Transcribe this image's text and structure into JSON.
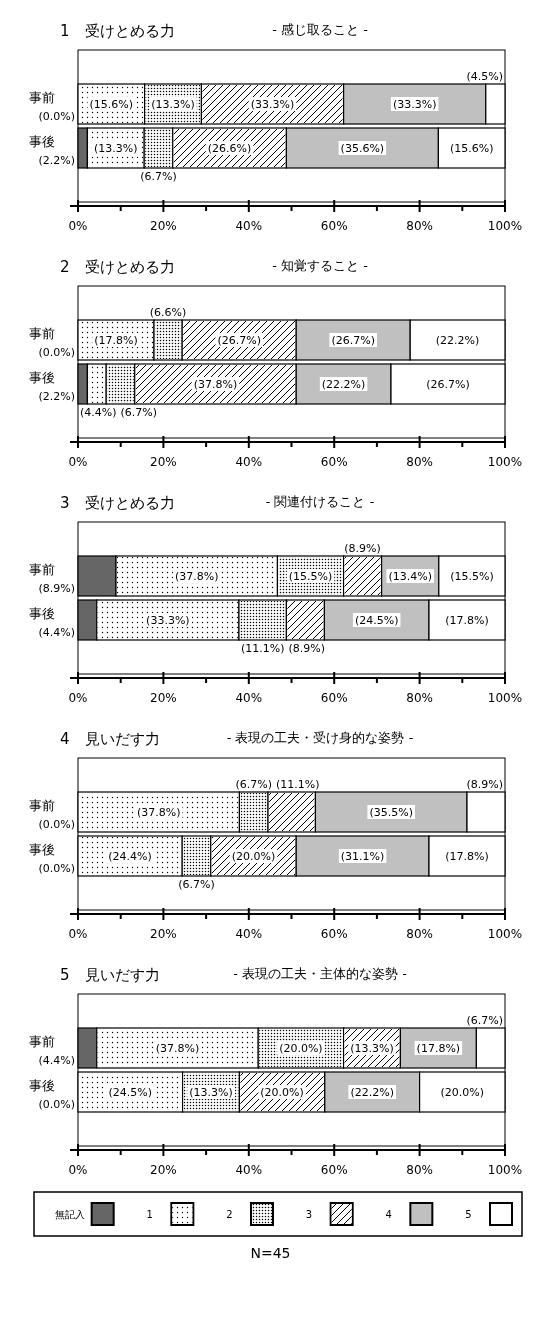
{
  "chart_data": [
    {
      "type": "bar",
      "orientation": "horizontal",
      "stacked": true,
      "title": "1　受けとめる力",
      "subtitle": "- 感じ取ること -",
      "categories": [
        "事前",
        "事後"
      ],
      "xlim": [
        0,
        100
      ],
      "xticks": [
        {
          "value": 0,
          "label": "0%"
        },
        {
          "value": 10,
          "label": null
        },
        {
          "value": 20,
          "label": "20%"
        },
        {
          "value": 30,
          "label": null
        },
        {
          "value": 40,
          "label": "40%"
        },
        {
          "value": 50,
          "label": null
        },
        {
          "value": 60,
          "label": "60%"
        },
        {
          "value": 70,
          "label": null
        },
        {
          "value": 80,
          "label": "80%"
        },
        {
          "value": 90,
          "label": null
        },
        {
          "value": 100,
          "label": "100%"
        }
      ],
      "series": [
        {
          "color": "#666666",
          "values": [
            0.0,
            2.2
          ],
          "value_labels": [
            "(0.0%)",
            "(2.2%)"
          ]
        },
        {
          "color": "#ffffff",
          "values": [
            15.6,
            13.3
          ],
          "value_labels": [
            "(15.6%)",
            "(13.3%)"
          ]
        },
        {
          "color": "#ffffff",
          "values": [
            13.3,
            6.7
          ],
          "value_labels": [
            "(13.3%)",
            "(6.7%)"
          ]
        },
        {
          "color": "#ffffff",
          "values": [
            33.3,
            26.6
          ],
          "value_labels": [
            "(33.3%)",
            "(26.6%)"
          ]
        },
        {
          "color": "#c0c0c0",
          "values": [
            33.3,
            35.6
          ],
          "value_labels": [
            "(33.3%)",
            "(35.6%)"
          ]
        },
        {
          "color": "#ffffff",
          "values": [
            4.5,
            15.6
          ],
          "value_labels": [
            "(4.5%)",
            "(15.6%)"
          ]
        }
      ]
    },
    {
      "type": "bar",
      "orientation": "horizontal",
      "stacked": true,
      "title": "2　受けとめる力",
      "subtitle": "- 知覚すること -",
      "categories": [
        "事前",
        "事後"
      ],
      "xlim": [
        0,
        100
      ],
      "xticks": [
        {
          "value": 0,
          "label": "0%"
        },
        {
          "value": 10,
          "label": null
        },
        {
          "value": 20,
          "label": "20%"
        },
        {
          "value": 30,
          "label": null
        },
        {
          "value": 40,
          "label": "40%"
        },
        {
          "value": 50,
          "label": null
        },
        {
          "value": 60,
          "label": "60%"
        },
        {
          "value": 70,
          "label": null
        },
        {
          "value": 80,
          "label": "80%"
        },
        {
          "value": 90,
          "label": null
        },
        {
          "value": 100,
          "label": "100%"
        }
      ],
      "series": [
        {
          "color": "#666666",
          "values": [
            0.0,
            2.2
          ],
          "value_labels": [
            "(0.0%)",
            "(2.2%)"
          ]
        },
        {
          "color": "#ffffff",
          "values": [
            17.8,
            4.4
          ],
          "value_labels": [
            "(17.8%)",
            "(4.4%)"
          ]
        },
        {
          "color": "#ffffff",
          "values": [
            6.6,
            6.7
          ],
          "value_labels": [
            "(6.6%)",
            "(6.7%)"
          ]
        },
        {
          "color": "#ffffff",
          "values": [
            26.7,
            37.8
          ],
          "value_labels": [
            "(26.7%)",
            "(37.8%)"
          ]
        },
        {
          "color": "#c0c0c0",
          "values": [
            26.7,
            22.2
          ],
          "value_labels": [
            "(26.7%)",
            "(22.2%)"
          ]
        },
        {
          "color": "#ffffff",
          "values": [
            22.2,
            26.7
          ],
          "value_labels": [
            "(22.2%)",
            "(26.7%)"
          ]
        }
      ]
    },
    {
      "type": "bar",
      "orientation": "horizontal",
      "stacked": true,
      "title": "3　受けとめる力",
      "subtitle": "- 関連付けること -",
      "categories": [
        "事前",
        "事後"
      ],
      "xlim": [
        0,
        100
      ],
      "xticks": [
        {
          "value": 0,
          "label": "0%"
        },
        {
          "value": 10,
          "label": null
        },
        {
          "value": 20,
          "label": "20%"
        },
        {
          "value": 30,
          "label": null
        },
        {
          "value": 40,
          "label": "40%"
        },
        {
          "value": 50,
          "label": null
        },
        {
          "value": 60,
          "label": "60%"
        },
        {
          "value": 70,
          "label": null
        },
        {
          "value": 80,
          "label": "80%"
        },
        {
          "value": 90,
          "label": null
        },
        {
          "value": 100,
          "label": "100%"
        }
      ],
      "series": [
        {
          "color": "#666666",
          "values": [
            8.9,
            4.4
          ],
          "value_labels": [
            "(8.9%)",
            "(4.4%)"
          ]
        },
        {
          "color": "#ffffff",
          "values": [
            37.8,
            33.3
          ],
          "value_labels": [
            "(37.8%)",
            "(33.3%)"
          ]
        },
        {
          "color": "#ffffff",
          "values": [
            15.5,
            11.1
          ],
          "value_labels": [
            "(15.5%)",
            "(11.1%)"
          ]
        },
        {
          "color": "#ffffff",
          "values": [
            8.9,
            8.9
          ],
          "value_labels": [
            "(8.9%)",
            "(8.9%)"
          ]
        },
        {
          "color": "#c0c0c0",
          "values": [
            13.4,
            24.5
          ],
          "value_labels": [
            "(13.4%)",
            "(24.5%)"
          ]
        },
        {
          "color": "#ffffff",
          "values": [
            15.5,
            17.8
          ],
          "value_labels": [
            "(15.5%)",
            "(17.8%)"
          ]
        }
      ]
    },
    {
      "type": "bar",
      "orientation": "horizontal",
      "stacked": true,
      "title": "4　見いだす力",
      "subtitle": "- 表現の工夫・受け身的な姿勢 -",
      "categories": [
        "事前",
        "事後"
      ],
      "xlim": [
        0,
        100
      ],
      "xticks": [
        {
          "value": 0,
          "label": "0%"
        },
        {
          "value": 10,
          "label": null
        },
        {
          "value": 20,
          "label": "20%"
        },
        {
          "value": 30,
          "label": null
        },
        {
          "value": 40,
          "label": "40%"
        },
        {
          "value": 50,
          "label": null
        },
        {
          "value": 60,
          "label": "60%"
        },
        {
          "value": 70,
          "label": null
        },
        {
          "value": 80,
          "label": "80%"
        },
        {
          "value": 90,
          "label": null
        },
        {
          "value": 100,
          "label": "100%"
        }
      ],
      "series": [
        {
          "color": "#666666",
          "values": [
            0.0,
            0.0
          ],
          "value_labels": [
            "(0.0%)",
            "(0.0%)"
          ]
        },
        {
          "color": "#ffffff",
          "values": [
            37.8,
            24.4
          ],
          "value_labels": [
            "(37.8%)",
            "(24.4%)"
          ]
        },
        {
          "color": "#ffffff",
          "values": [
            6.7,
            6.7
          ],
          "value_labels": [
            "(6.7%)",
            "(6.7%)"
          ]
        },
        {
          "color": "#ffffff",
          "values": [
            11.1,
            20.0
          ],
          "value_labels": [
            "(11.1%)",
            "(20.0%)"
          ]
        },
        {
          "color": "#c0c0c0",
          "values": [
            35.5,
            31.1
          ],
          "value_labels": [
            "(35.5%)",
            "(31.1%)"
          ]
        },
        {
          "color": "#ffffff",
          "values": [
            8.9,
            17.8
          ],
          "value_labels": [
            "(8.9%)",
            "(17.8%)"
          ]
        }
      ]
    },
    {
      "type": "bar",
      "orientation": "horizontal",
      "stacked": true,
      "title": "5　見いだす力",
      "subtitle": "- 表現の工夫・主体的な姿勢 -",
      "categories": [
        "事前",
        "事後"
      ],
      "xlim": [
        0,
        100
      ],
      "xticks": [
        {
          "value": 0,
          "label": "0%"
        },
        {
          "value": 10,
          "label": null
        },
        {
          "value": 20,
          "label": "20%"
        },
        {
          "value": 30,
          "label": null
        },
        {
          "value": 40,
          "label": "40%"
        },
        {
          "value": 50,
          "label": null
        },
        {
          "value": 60,
          "label": "60%"
        },
        {
          "value": 70,
          "label": null
        },
        {
          "value": 80,
          "label": "80%"
        },
        {
          "value": 90,
          "label": null
        },
        {
          "value": 100,
          "label": "100%"
        }
      ],
      "legend": "bottom",
      "annotations": [
        "N=45"
      ],
      "series": [
        {
          "name": "無記入",
          "color": "#666666",
          "values": [
            4.4,
            0.0
          ],
          "value_labels": [
            "(4.4%)",
            "(0.0%)"
          ]
        },
        {
          "name": "1",
          "color": "#ffffff",
          "values": [
            37.8,
            24.5
          ],
          "value_labels": [
            "(37.8%)",
            "(24.5%)"
          ]
        },
        {
          "name": "2",
          "color": "#ffffff",
          "values": [
            20.0,
            13.3
          ],
          "value_labels": [
            "(20.0%)",
            "(13.3%)"
          ]
        },
        {
          "name": "3",
          "color": "#ffffff",
          "values": [
            13.3,
            20.0
          ],
          "value_labels": [
            "(13.3%)",
            "(20.0%)"
          ]
        },
        {
          "name": "4",
          "color": "#c0c0c0",
          "values": [
            17.8,
            22.2
          ],
          "value_labels": [
            "(17.8%)",
            "(22.2%)"
          ]
        },
        {
          "name": "5",
          "color": "#ffffff",
          "values": [
            6.7,
            20.0
          ],
          "value_labels": [
            "(6.7%)",
            "(20.0%)"
          ]
        }
      ]
    }
  ]
}
